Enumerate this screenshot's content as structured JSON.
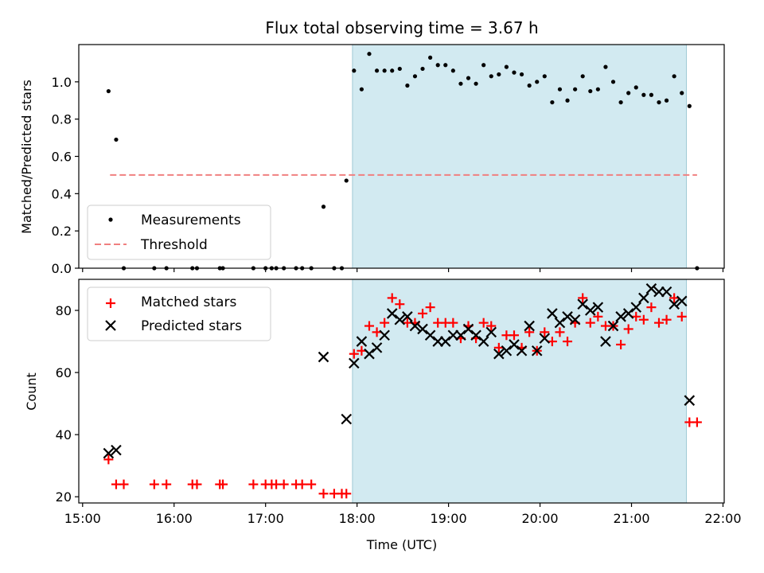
{
  "chart_data": [
    {
      "type": "scatter",
      "title": "Flux total observing time = 3.67 h",
      "xlabel": "",
      "ylabel": "Matched/Predicted stars",
      "xlim": [
        "15:00",
        "22:00"
      ],
      "ylim": [
        0,
        1.2
      ],
      "yticks": [
        "0.0",
        "0.2",
        "0.4",
        "0.6",
        "0.8",
        "1.0"
      ],
      "grid": false,
      "legend_position": "lower-left",
      "shaded_span": {
        "x": [
          "17:57",
          "21:36"
        ],
        "color": "#add8e6"
      },
      "series": [
        {
          "name": "Measurements",
          "marker": "dot",
          "color": "#000000",
          "points": [
            [
              "15:17",
              0.95
            ],
            [
              "15:22",
              0.69
            ],
            [
              "15:27",
              0.0
            ],
            [
              "15:47",
              0.0
            ],
            [
              "15:55",
              0.0
            ],
            [
              "16:12",
              0.0
            ],
            [
              "16:15",
              0.0
            ],
            [
              "16:30",
              0.0
            ],
            [
              "16:32",
              0.0
            ],
            [
              "16:52",
              0.0
            ],
            [
              "17:00",
              0.0
            ],
            [
              "17:04",
              0.0
            ],
            [
              "17:07",
              0.0
            ],
            [
              "17:12",
              0.0
            ],
            [
              "17:20",
              0.0
            ],
            [
              "17:24",
              0.0
            ],
            [
              "17:30",
              0.0
            ],
            [
              "17:38",
              0.33
            ],
            [
              "17:45",
              0.0
            ],
            [
              "17:50",
              0.0
            ],
            [
              "17:53",
              0.47
            ],
            [
              "17:58",
              1.06
            ],
            [
              "18:03",
              0.96
            ],
            [
              "18:08",
              1.15
            ],
            [
              "18:13",
              1.06
            ],
            [
              "18:18",
              1.06
            ],
            [
              "18:23",
              1.06
            ],
            [
              "18:28",
              1.07
            ],
            [
              "18:33",
              0.98
            ],
            [
              "18:38",
              1.03
            ],
            [
              "18:43",
              1.07
            ],
            [
              "18:48",
              1.13
            ],
            [
              "18:53",
              1.09
            ],
            [
              "18:58",
              1.09
            ],
            [
              "19:03",
              1.06
            ],
            [
              "19:08",
              0.99
            ],
            [
              "19:13",
              1.02
            ],
            [
              "19:18",
              0.99
            ],
            [
              "19:23",
              1.09
            ],
            [
              "19:28",
              1.03
            ],
            [
              "19:33",
              1.04
            ],
            [
              "19:38",
              1.08
            ],
            [
              "19:43",
              1.05
            ],
            [
              "19:48",
              1.04
            ],
            [
              "19:53",
              0.98
            ],
            [
              "19:58",
              1.0
            ],
            [
              "20:03",
              1.03
            ],
            [
              "20:08",
              0.89
            ],
            [
              "20:13",
              0.96
            ],
            [
              "20:18",
              0.9
            ],
            [
              "20:23",
              0.96
            ],
            [
              "20:28",
              1.03
            ],
            [
              "20:33",
              0.95
            ],
            [
              "20:38",
              0.96
            ],
            [
              "20:43",
              1.08
            ],
            [
              "20:48",
              1.0
            ],
            [
              "20:53",
              0.89
            ],
            [
              "20:58",
              0.94
            ],
            [
              "21:03",
              0.97
            ],
            [
              "21:08",
              0.93
            ],
            [
              "21:13",
              0.93
            ],
            [
              "21:18",
              0.89
            ],
            [
              "21:23",
              0.9
            ],
            [
              "21:28",
              1.03
            ],
            [
              "21:33",
              0.94
            ],
            [
              "21:38",
              0.87
            ],
            [
              "21:43",
              0.0
            ]
          ]
        },
        {
          "name": "Threshold",
          "marker": "dashed-line",
          "color": "#f08080",
          "points": [
            [
              "15:18",
              0.5
            ],
            [
              "21:43",
              0.5
            ]
          ]
        }
      ]
    },
    {
      "type": "scatter",
      "title": "",
      "xlabel": "Time (UTC)",
      "ylabel": "Count",
      "xlim": [
        "15:00",
        "22:00"
      ],
      "xticks": [
        "15:00",
        "16:00",
        "17:00",
        "18:00",
        "19:00",
        "20:00",
        "21:00",
        "22:00"
      ],
      "ylim": [
        18,
        90
      ],
      "yticks": [
        "20",
        "40",
        "60",
        "80"
      ],
      "grid": false,
      "legend_position": "upper-left",
      "shaded_span": {
        "x": [
          "17:57",
          "21:36"
        ],
        "color": "#add8e6"
      },
      "series": [
        {
          "name": "Matched stars",
          "marker": "plus",
          "color": "#ff0000",
          "points": [
            [
              "15:17",
              32
            ],
            [
              "15:22",
              24
            ],
            [
              "15:27",
              24
            ],
            [
              "15:47",
              24
            ],
            [
              "15:55",
              24
            ],
            [
              "16:12",
              24
            ],
            [
              "16:15",
              24
            ],
            [
              "16:30",
              24
            ],
            [
              "16:32",
              24
            ],
            [
              "16:52",
              24
            ],
            [
              "17:00",
              24
            ],
            [
              "17:04",
              24
            ],
            [
              "17:07",
              24
            ],
            [
              "17:12",
              24
            ],
            [
              "17:20",
              24
            ],
            [
              "17:24",
              24
            ],
            [
              "17:30",
              24
            ],
            [
              "17:38",
              21
            ],
            [
              "17:45",
              21
            ],
            [
              "17:50",
              21
            ],
            [
              "17:53",
              21
            ],
            [
              "17:58",
              66
            ],
            [
              "18:03",
              67
            ],
            [
              "18:08",
              75
            ],
            [
              "18:13",
              73
            ],
            [
              "18:18",
              76
            ],
            [
              "18:23",
              84
            ],
            [
              "18:28",
              82
            ],
            [
              "18:33",
              76
            ],
            [
              "18:38",
              76
            ],
            [
              "18:43",
              79
            ],
            [
              "18:48",
              81
            ],
            [
              "18:53",
              76
            ],
            [
              "18:58",
              76
            ],
            [
              "19:03",
              76
            ],
            [
              "19:08",
              71
            ],
            [
              "19:13",
              75
            ],
            [
              "19:18",
              71
            ],
            [
              "19:23",
              76
            ],
            [
              "19:28",
              75
            ],
            [
              "19:33",
              68
            ],
            [
              "19:38",
              72
            ],
            [
              "19:43",
              72
            ],
            [
              "19:48",
              68
            ],
            [
              "19:53",
              73
            ],
            [
              "19:58",
              67
            ],
            [
              "20:03",
              73
            ],
            [
              "20:08",
              70
            ],
            [
              "20:13",
              73
            ],
            [
              "20:18",
              70
            ],
            [
              "20:23",
              76
            ],
            [
              "20:28",
              84
            ],
            [
              "20:33",
              76
            ],
            [
              "20:38",
              78
            ],
            [
              "20:43",
              75
            ],
            [
              "20:48",
              75
            ],
            [
              "20:53",
              69
            ],
            [
              "20:58",
              74
            ],
            [
              "21:03",
              78
            ],
            [
              "21:08",
              77
            ],
            [
              "21:13",
              81
            ],
            [
              "21:18",
              76
            ],
            [
              "21:23",
              77
            ],
            [
              "21:28",
              84
            ],
            [
              "21:33",
              78
            ],
            [
              "21:38",
              44
            ],
            [
              "21:43",
              44
            ]
          ]
        },
        {
          "name": "Predicted stars",
          "marker": "x",
          "color": "#000000",
          "points": [
            [
              "15:17",
              34
            ],
            [
              "15:22",
              35
            ],
            [
              "17:38",
              65
            ],
            [
              "17:53",
              45
            ],
            [
              "17:58",
              63
            ],
            [
              "18:03",
              70
            ],
            [
              "18:08",
              66
            ],
            [
              "18:13",
              68
            ],
            [
              "18:18",
              72
            ],
            [
              "18:23",
              79
            ],
            [
              "18:28",
              77
            ],
            [
              "18:33",
              78
            ],
            [
              "18:38",
              75
            ],
            [
              "18:43",
              74
            ],
            [
              "18:48",
              72
            ],
            [
              "18:53",
              70
            ],
            [
              "18:58",
              70
            ],
            [
              "19:03",
              72
            ],
            [
              "19:08",
              72
            ],
            [
              "19:13",
              74
            ],
            [
              "19:18",
              72
            ],
            [
              "19:23",
              70
            ],
            [
              "19:28",
              73
            ],
            [
              "19:33",
              66
            ],
            [
              "19:38",
              67
            ],
            [
              "19:43",
              69
            ],
            [
              "19:48",
              67
            ],
            [
              "19:53",
              75
            ],
            [
              "19:58",
              67
            ],
            [
              "20:03",
              71
            ],
            [
              "20:08",
              79
            ],
            [
              "20:13",
              76
            ],
            [
              "20:18",
              78
            ],
            [
              "20:23",
              77
            ],
            [
              "20:28",
              82
            ],
            [
              "20:33",
              80
            ],
            [
              "20:38",
              81
            ],
            [
              "20:43",
              70
            ],
            [
              "20:48",
              75
            ],
            [
              "20:53",
              78
            ],
            [
              "20:58",
              79
            ],
            [
              "21:03",
              81
            ],
            [
              "21:08",
              84
            ],
            [
              "21:13",
              87
            ],
            [
              "21:18",
              86
            ],
            [
              "21:23",
              86
            ],
            [
              "21:28",
              82
            ],
            [
              "21:33",
              83
            ],
            [
              "21:38",
              51
            ]
          ]
        }
      ]
    }
  ]
}
